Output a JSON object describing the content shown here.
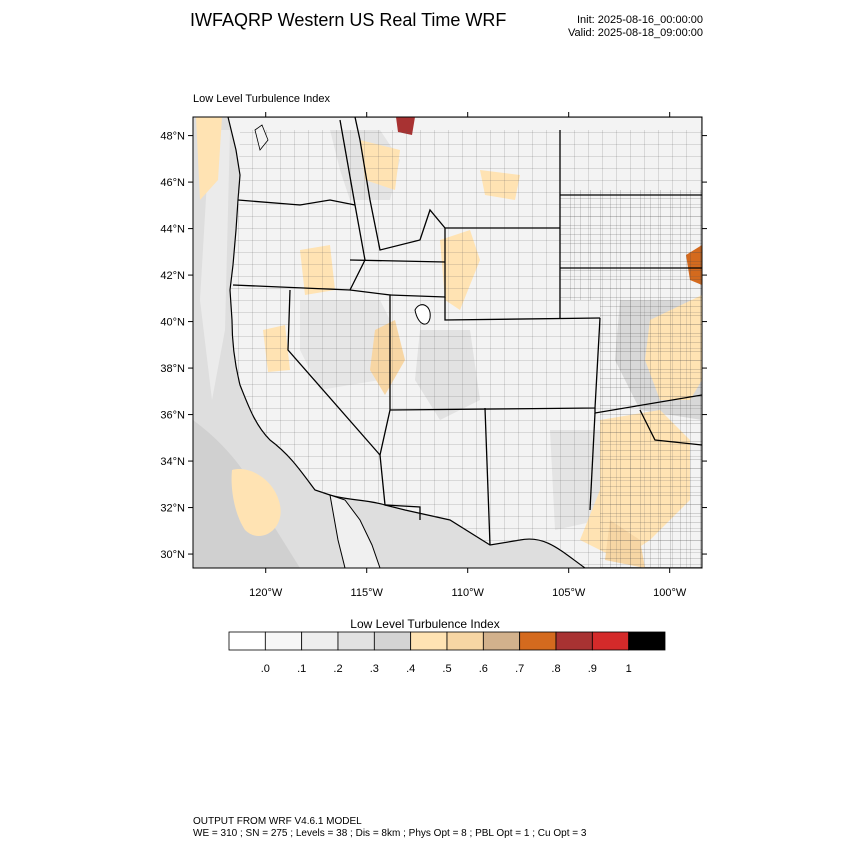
{
  "header": {
    "title": "IWFAQRP Western US Real Time WRF",
    "init": "Init: 2025-08-16_00:00:00",
    "valid": "Valid: 2025-08-18_09:00:00",
    "subtitle": "Low Level Turbulence Index"
  },
  "map": {
    "lat_labels": [
      "48°N",
      "46°N",
      "44°N",
      "42°N",
      "40°N",
      "38°N",
      "36°N",
      "34°N",
      "32°N",
      "30°N"
    ],
    "lat_values": [
      48,
      46,
      44,
      42,
      40,
      38,
      36,
      34,
      32,
      30
    ],
    "lon_labels": [
      "120°W",
      "115°W",
      "110°W",
      "105°W",
      "100°W"
    ],
    "lon_values": [
      -120,
      -115,
      -110,
      -105,
      -100
    ],
    "lat_range": [
      29.4,
      48.8
    ],
    "lon_range": [
      -123.6,
      -98.4
    ]
  },
  "colorbar": {
    "title": "Low Level Turbulence Index",
    "colors": [
      "#ffffff",
      "#f7f7f7",
      "#eeeeee",
      "#e2e2e2",
      "#d4d4d4",
      "#ffe3b3",
      "#f7d6a4",
      "#d2b18c",
      "#d46a1e",
      "#a83232",
      "#d42a2a",
      "#000000"
    ],
    "labels": [
      ".0",
      ".1",
      ".2",
      ".3",
      ".4",
      ".5",
      ".6",
      ".7",
      ".8",
      ".9",
      "1"
    ]
  },
  "footer": {
    "line1": "OUTPUT FROM WRF V4.6.1 MODEL",
    "line2": "WE = 310 ; SN = 275 ; Levels = 38 ; Dis = 8km ; Phys Opt = 8 ; PBL Opt = 1 ; Cu Opt = 3"
  }
}
